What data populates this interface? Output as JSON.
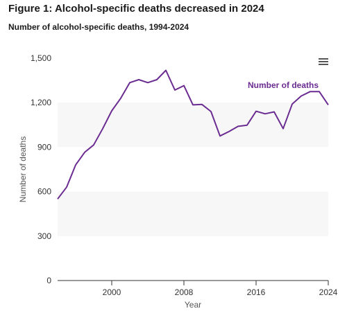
{
  "figure": {
    "title": "Figure 1: Alcohol-specific deaths decreased in 2024",
    "subtitle": "Number of alcohol-specific deaths, 1994-2024",
    "menu_icon": "hamburger-menu-icon"
  },
  "chart_data": {
    "type": "line",
    "title": "Figure 1: Alcohol-specific deaths decreased in 2024",
    "subtitle": "Number of alcohol-specific deaths, 1994-2024",
    "xlabel": "Year",
    "ylabel": "Number of deaths",
    "xlim": [
      1994,
      2024
    ],
    "ylim": [
      0,
      1500
    ],
    "x_ticks": [
      "2000",
      "2008",
      "2016",
      "2024"
    ],
    "y_ticks": [
      "0",
      "300",
      "600",
      "900",
      "1,200",
      "1,500"
    ],
    "grid": "alternating horizontal bands",
    "series": [
      {
        "name": "Number of deaths",
        "color": "#6b2c91",
        "x": [
          1994,
          1995,
          1996,
          1997,
          1998,
          1999,
          2000,
          2001,
          2002,
          2003,
          2004,
          2005,
          2006,
          2007,
          2008,
          2009,
          2010,
          2011,
          2012,
          2013,
          2014,
          2015,
          2016,
          2017,
          2018,
          2019,
          2020,
          2021,
          2022,
          2023,
          2024
        ],
        "y": [
          550,
          630,
          780,
          865,
          915,
          1025,
          1145,
          1230,
          1335,
          1355,
          1335,
          1355,
          1418,
          1285,
          1315,
          1185,
          1188,
          1140,
          975,
          1005,
          1040,
          1048,
          1142,
          1125,
          1138,
          1025,
          1190,
          1245,
          1275,
          1275,
          1185
        ]
      }
    ]
  }
}
